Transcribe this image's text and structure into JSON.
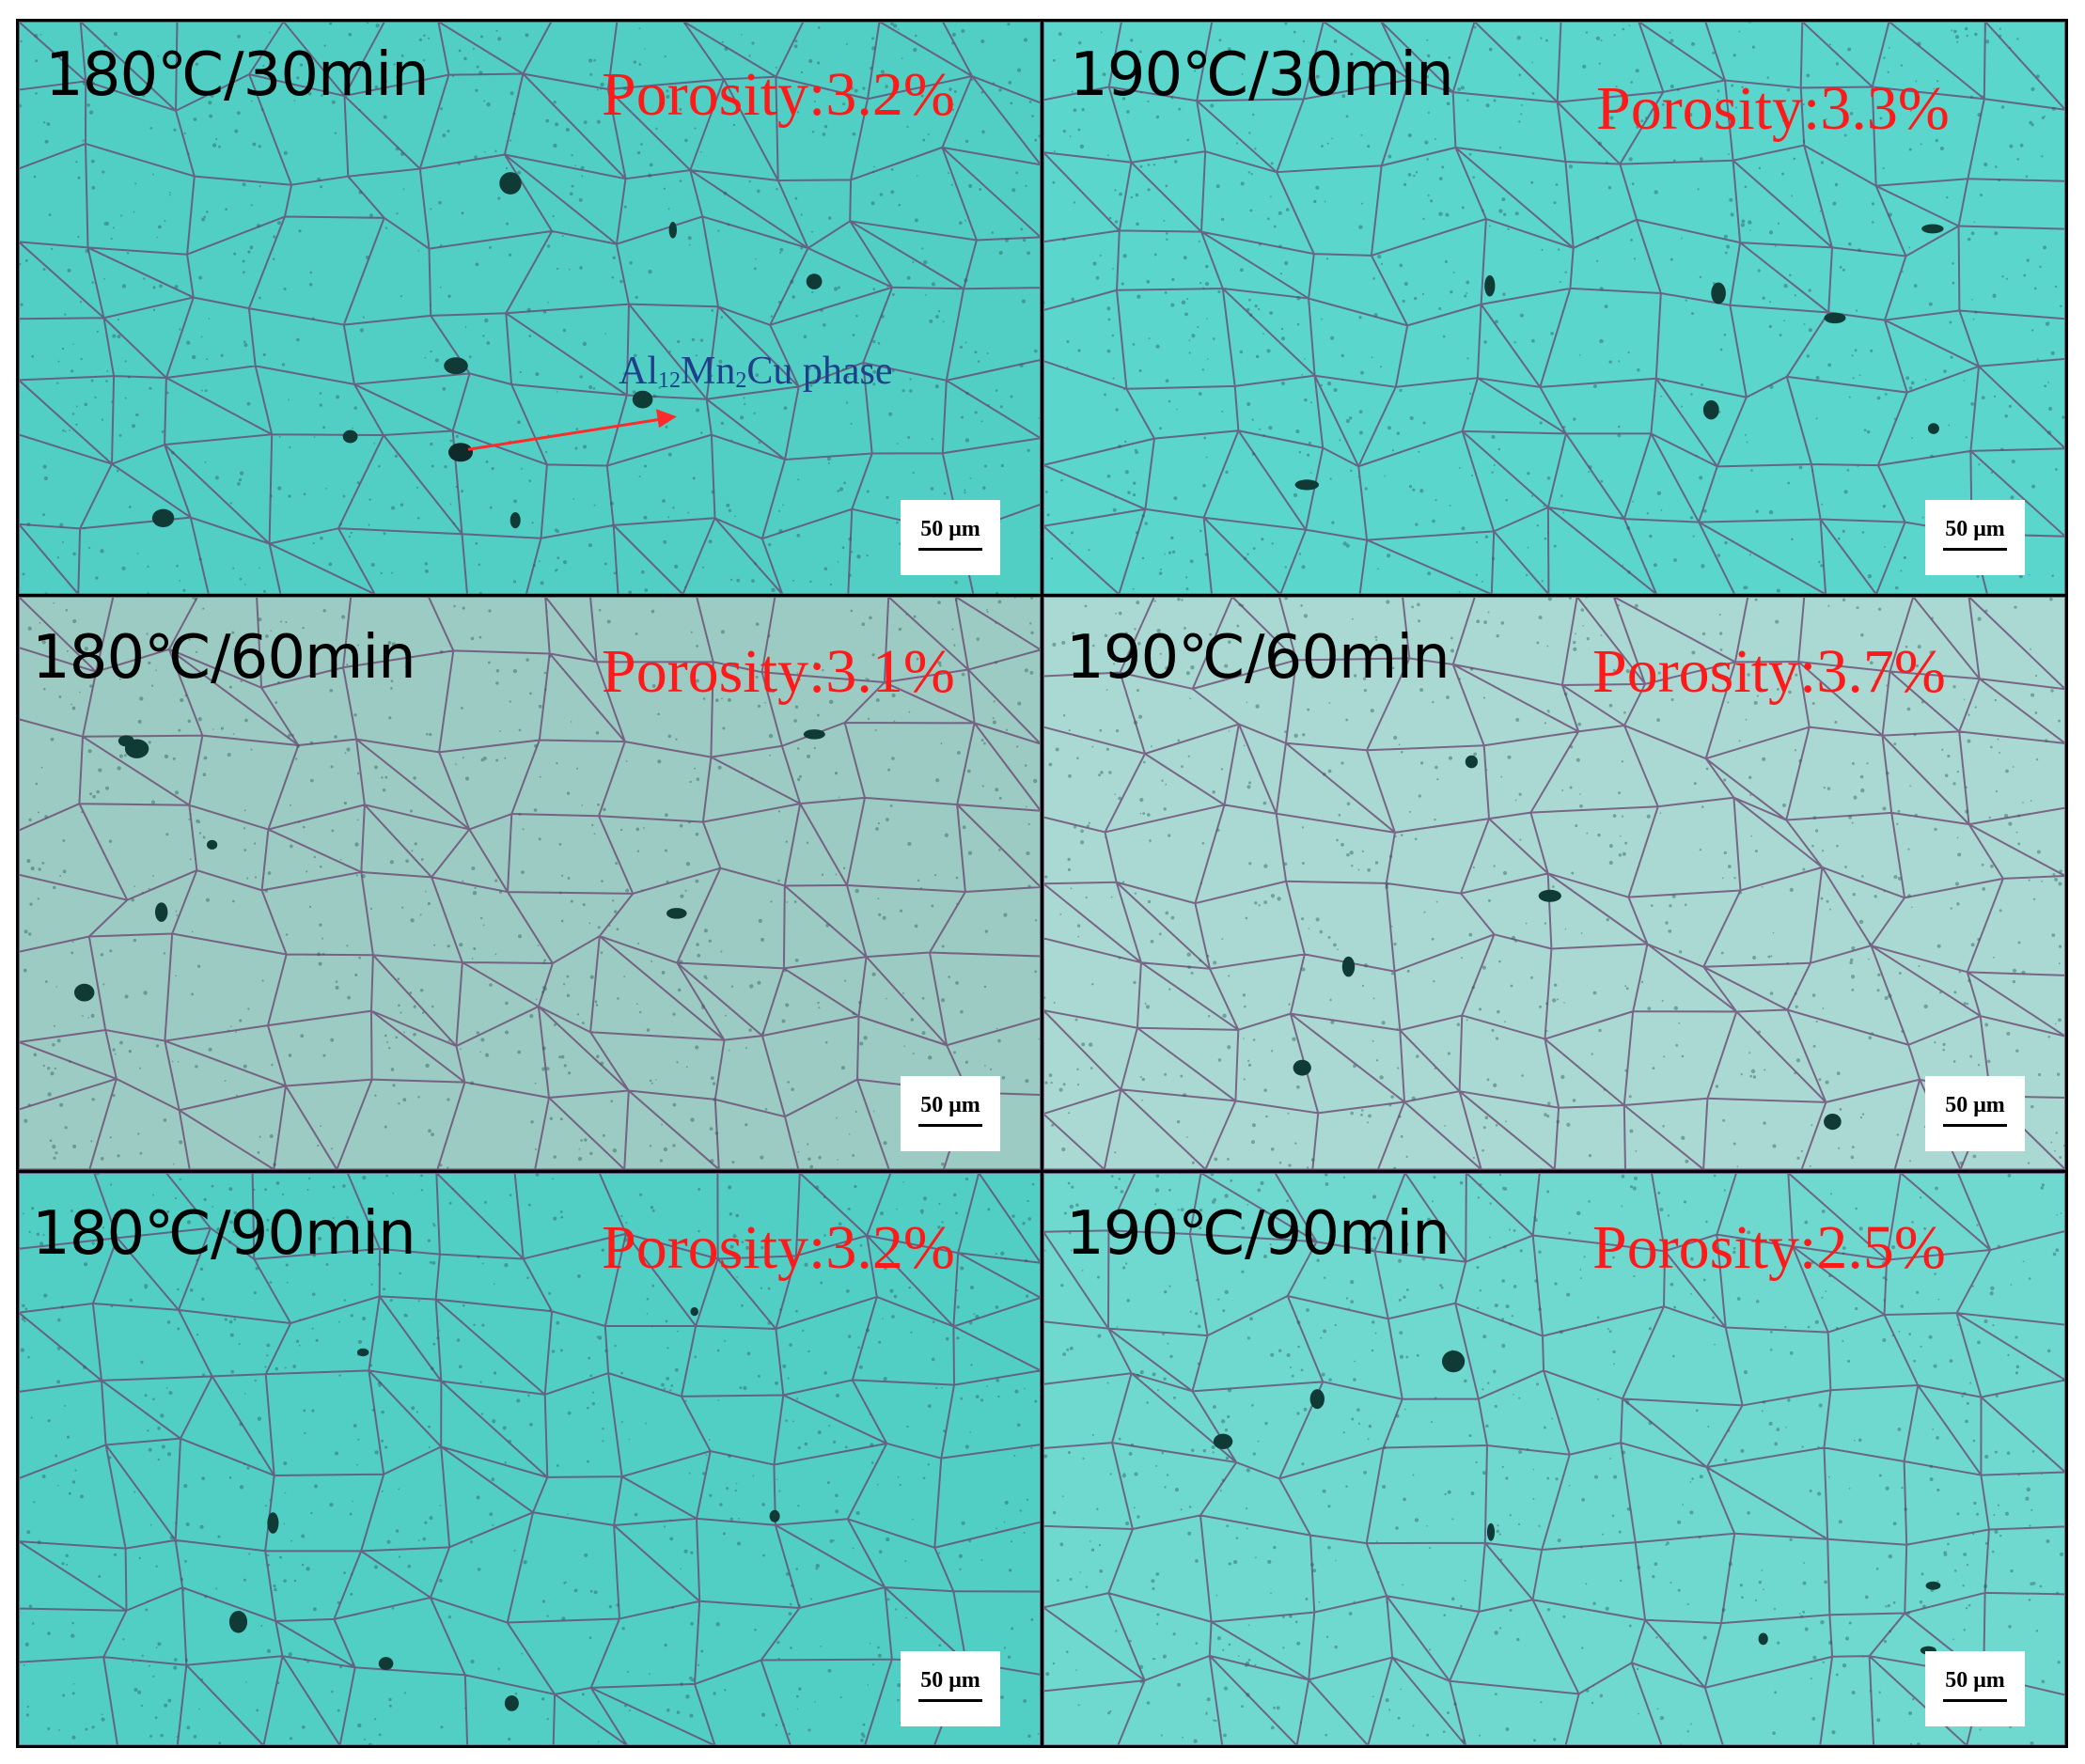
{
  "figure": {
    "panels": [
      {
        "condition": "180℃/30min",
        "porosity": "Porosity:3.2%",
        "scale": "50 μm",
        "tint": "#52cfc4"
      },
      {
        "condition": "190℃/30min",
        "porosity": "Porosity:3.3%",
        "scale": "50 μm",
        "tint": "#5ad6cd"
      },
      {
        "condition": "180℃/60min",
        "porosity": "Porosity:3.1%",
        "scale": "50 μm",
        "tint": "#9bcbc2"
      },
      {
        "condition": "190℃/60min",
        "porosity": "Porosity:3.7%",
        "scale": "50 μm",
        "tint": "#a9d9d2"
      },
      {
        "condition": "180℃/90min",
        "porosity": "Porosity:3.2%",
        "scale": "50 μm",
        "tint": "#52cfc4"
      },
      {
        "condition": "190℃/90min",
        "porosity": "Porosity:2.5%",
        "scale": "50 μm",
        "tint": "#6fd9d0"
      }
    ],
    "annotation": {
      "phase_formula": [
        "Al",
        "12",
        "Mn",
        "2",
        "Cu"
      ],
      "phase_suffix": " phase"
    },
    "colors": {
      "grain_boundary": "#6a3f6e",
      "porosity_text": "#ff1a1a",
      "annotation_text": "#1f3f8a",
      "arrow": "#ff2a2a",
      "pore": "#0f3a36"
    }
  }
}
